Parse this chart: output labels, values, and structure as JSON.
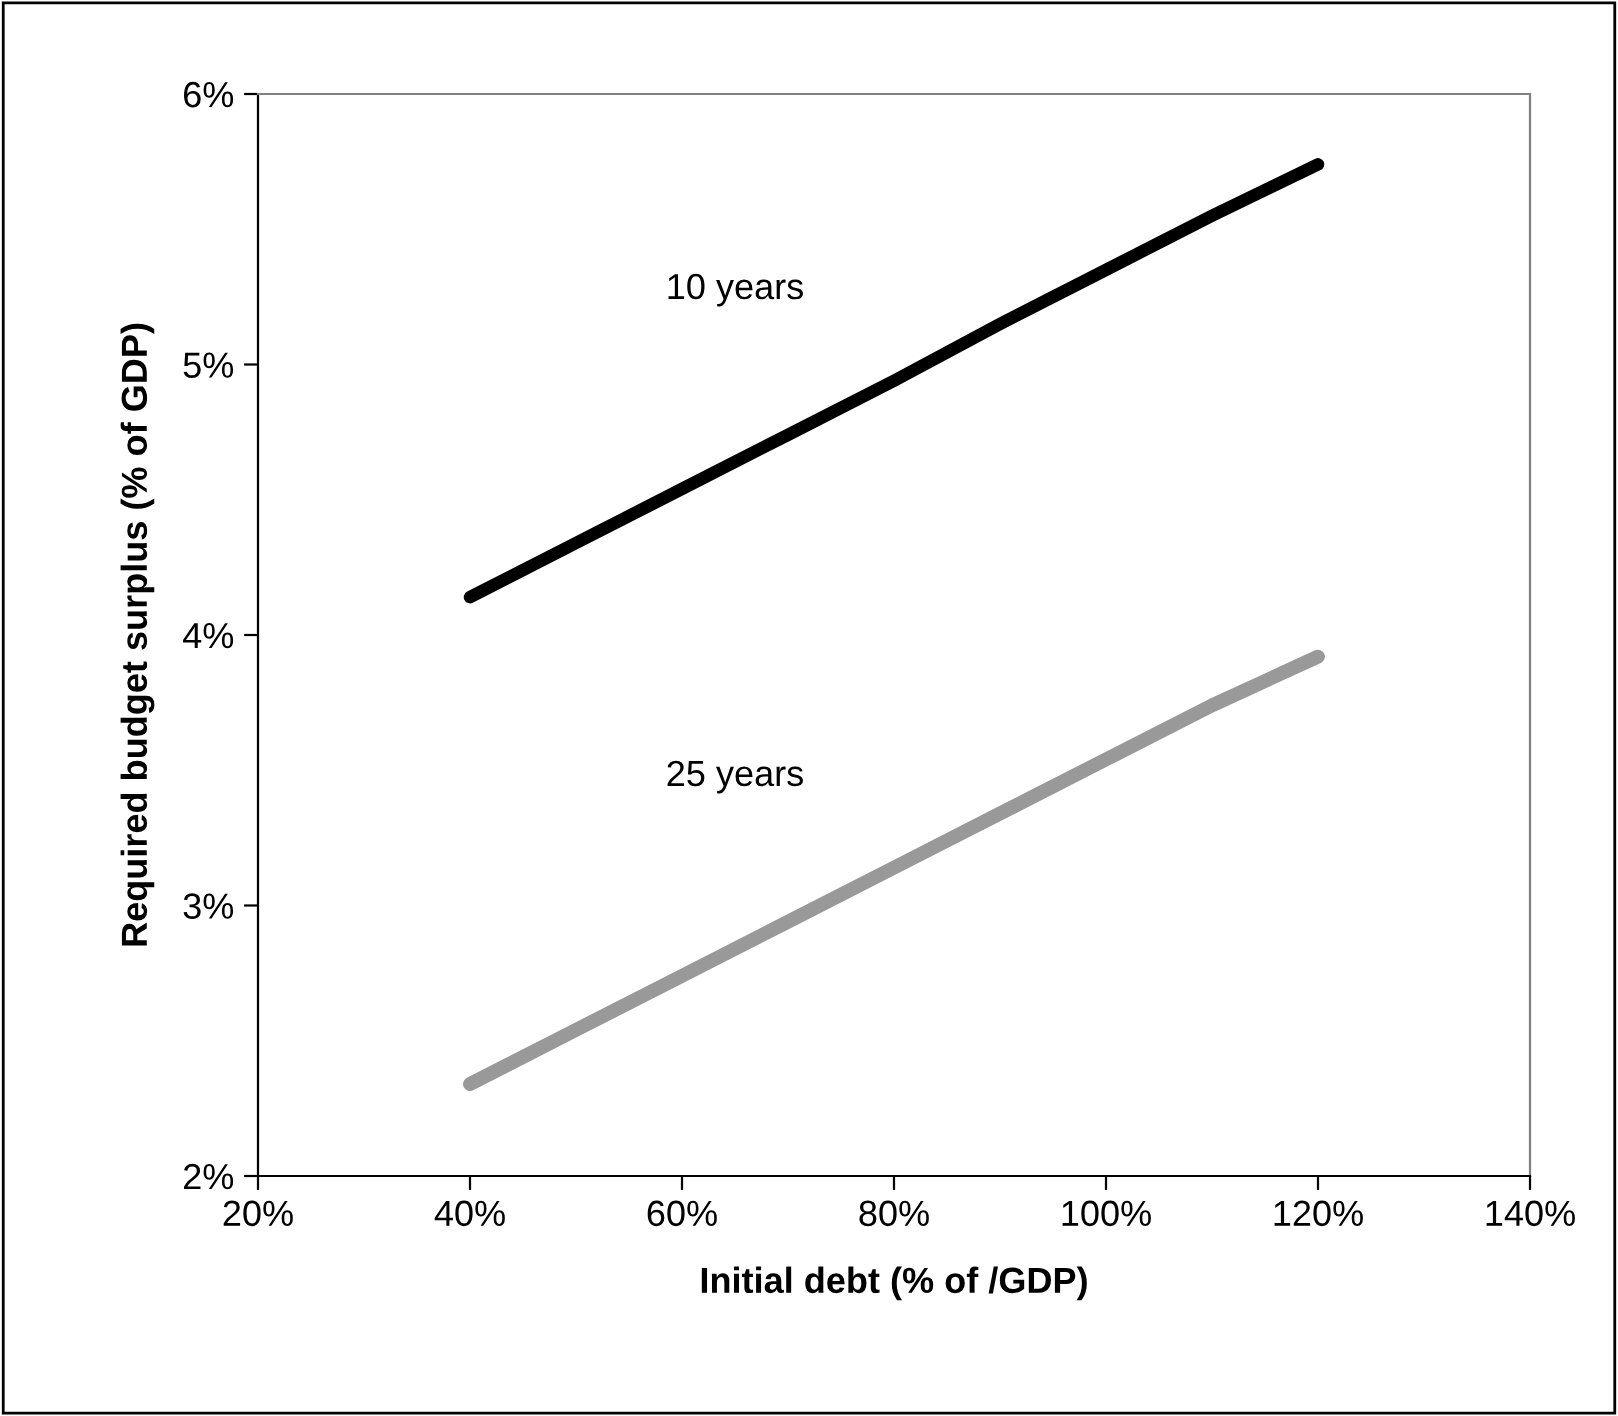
{
  "chart_data": {
    "type": "line",
    "xlabel": "Initial debt (% of /GDP)",
    "ylabel": "Required budget surplus (% of GDP)",
    "x": [
      40,
      50,
      60,
      70,
      80,
      90,
      100,
      110,
      120
    ],
    "series": [
      {
        "name": "10 years",
        "color": "#000000",
        "values": [
          4.14,
          4.34,
          4.54,
          4.74,
          4.94,
          5.15,
          5.35,
          5.55,
          5.74
        ]
      },
      {
        "name": "25 years",
        "color": "#999999",
        "values": [
          2.34,
          2.54,
          2.74,
          2.94,
          3.14,
          3.34,
          3.54,
          3.74,
          3.92
        ]
      }
    ],
    "xlim": [
      20,
      140
    ],
    "ylim": [
      2,
      6
    ],
    "xticks": [
      {
        "value": 20,
        "label": "20%"
      },
      {
        "value": 40,
        "label": "40%"
      },
      {
        "value": 60,
        "label": "60%"
      },
      {
        "value": 80,
        "label": "80%"
      },
      {
        "value": 100,
        "label": "100%"
      },
      {
        "value": 120,
        "label": "120%"
      },
      {
        "value": 140,
        "label": "140%"
      }
    ],
    "yticks": [
      {
        "value": 2,
        "label": "2%"
      },
      {
        "value": 3,
        "label": "3%"
      },
      {
        "value": 4,
        "label": "4%"
      },
      {
        "value": 5,
        "label": "5%"
      },
      {
        "value": 6,
        "label": "6%"
      }
    ],
    "grid": false,
    "legend": false,
    "marker": "none",
    "line_style": "solid"
  }
}
